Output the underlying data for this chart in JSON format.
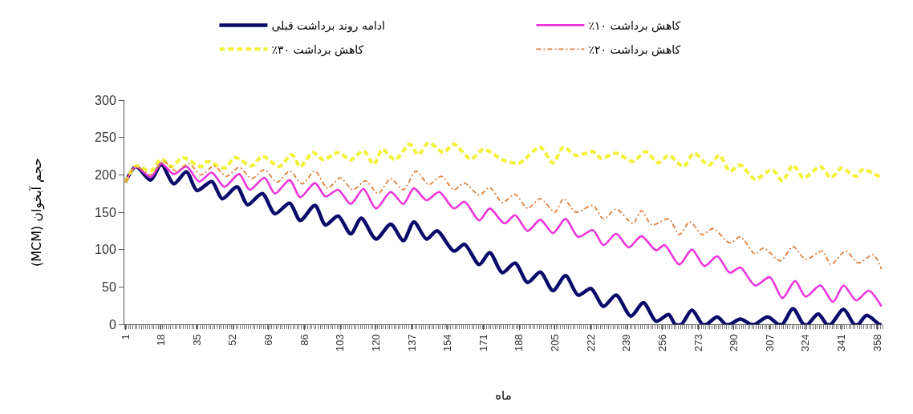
{
  "chart_data": {
    "type": "line",
    "xlabel": "ماه",
    "ylabel": "حجم آبخوان (MCM)",
    "xlim": [
      0.5,
      360.5
    ],
    "xticks": [
      1,
      18,
      35,
      52,
      69,
      86,
      103,
      120,
      137,
      154,
      171,
      188,
      205,
      222,
      239,
      256,
      273,
      290,
      307,
      324,
      341,
      358
    ],
    "ylim": [
      0,
      300
    ],
    "yticks": [
      0,
      50,
      100,
      150,
      200,
      250,
      300
    ],
    "grid": false,
    "legend": "top",
    "series": [
      {
        "name": "ادامه روند برداشت قبلی",
        "color": "#0a0a6b",
        "line_style": "solid",
        "x": [
          1,
          6,
          13,
          18,
          24,
          30,
          35,
          42,
          47,
          54,
          59,
          66,
          72,
          79,
          84,
          91,
          96,
          102,
          108,
          113,
          120,
          127,
          133,
          138,
          144,
          149,
          157,
          162,
          169,
          174,
          180,
          186,
          192,
          198,
          204,
          210,
          216,
          222,
          228,
          234,
          241,
          247,
          253,
          259,
          262,
          265,
          270,
          275,
          277,
          282,
          286,
          288,
          293,
          298,
          300,
          306,
          311,
          313,
          318,
          323,
          325,
          330,
          334,
          336,
          342,
          347,
          349,
          353,
          359,
          360
        ],
        "values": [
          190,
          211,
          193,
          214,
          188,
          204,
          179,
          191,
          168,
          184,
          160,
          175,
          148,
          162,
          139,
          159,
          133,
          145,
          121,
          142,
          114,
          134,
          112,
          137,
          114,
          125,
          98,
          107,
          80,
          96,
          69,
          82,
          56,
          70,
          45,
          65,
          39,
          48,
          24,
          39,
          11,
          29,
          4,
          13,
          0,
          0,
          19,
          0,
          0,
          10,
          0,
          0,
          7,
          0,
          0,
          10,
          0,
          0,
          21,
          0,
          0,
          14,
          0,
          0,
          20,
          0,
          0,
          12,
          0,
          0
        ]
      },
      {
        "name": "کاهش برداشت ۱۰٪",
        "color": "#ee33dd",
        "line_style": "solid",
        "x": [
          1,
          6,
          13,
          18,
          24,
          30,
          36,
          42,
          48,
          55,
          60,
          67,
          72,
          79,
          84,
          91,
          96,
          102,
          108,
          114,
          120,
          127,
          133,
          138,
          144,
          150,
          157,
          162,
          169,
          174,
          181,
          186,
          192,
          198,
          204,
          210,
          216,
          223,
          228,
          234,
          240,
          246,
          253,
          257,
          264,
          270,
          276,
          282,
          288,
          293,
          300,
          307,
          313,
          319,
          324,
          331,
          337,
          342,
          348,
          354,
          360
        ],
        "values": [
          190,
          211,
          197,
          215,
          201,
          211,
          191,
          203,
          184,
          201,
          180,
          196,
          175,
          193,
          170,
          189,
          171,
          180,
          161,
          181,
          155,
          177,
          161,
          182,
          166,
          177,
          155,
          164,
          139,
          155,
          135,
          146,
          125,
          140,
          122,
          141,
          117,
          126,
          106,
          121,
          103,
          118,
          99,
          106,
          80,
          100,
          78,
          91,
          69,
          76,
          52,
          63,
          35,
          58,
          37,
          52,
          30,
          52,
          32,
          45,
          24
        ]
      },
      {
        "name": "کاهش برداشت ۳۰٪",
        "color": "#f2f23a",
        "line_style": "dashed",
        "x": [
          1,
          6,
          13,
          18,
          23,
          28,
          37,
          40,
          48,
          53,
          61,
          66,
          74,
          80,
          84,
          90,
          95,
          102,
          108,
          114,
          119,
          123,
          129,
          136,
          140,
          145,
          152,
          157,
          165,
          171,
          181,
          188,
          198,
          204,
          209,
          215,
          223,
          227,
          234,
          242,
          248,
          254,
          259,
          266,
          271,
          278,
          283,
          288,
          293,
          300,
          308,
          313,
          318,
          323,
          331,
          336,
          341,
          348,
          351,
          360
        ],
        "values": [
          190,
          212,
          205,
          221,
          211,
          223,
          211,
          218,
          209,
          223,
          212,
          225,
          211,
          227,
          211,
          230,
          220,
          230,
          220,
          232,
          214,
          234,
          220,
          241,
          227,
          243,
          230,
          241,
          221,
          234,
          219,
          216,
          237,
          216,
          237,
          226,
          231,
          222,
          229,
          218,
          231,
          216,
          226,
          211,
          229,
          213,
          226,
          205,
          213,
          194,
          207,
          192,
          213,
          196,
          211,
          196,
          209,
          198,
          207,
          196
        ]
      },
      {
        "name": "کاهش برداشت ۲۰٪",
        "color": "#e0803c",
        "line_style": "dashdot",
        "x": [
          1,
          6,
          13,
          19,
          25,
          31,
          37,
          43,
          49,
          55,
          61,
          67,
          73,
          79,
          85,
          91,
          97,
          103,
          109,
          115,
          121,
          127,
          133,
          139,
          145,
          151,
          157,
          162,
          169,
          174,
          180,
          186,
          192,
          198,
          205,
          209,
          215,
          223,
          228,
          234,
          242,
          246,
          251,
          259,
          264,
          269,
          275,
          280,
          288,
          293,
          300,
          304,
          312,
          318,
          324,
          332,
          336,
          343,
          349,
          356,
          360
        ],
        "values": [
          190,
          211,
          200,
          218,
          205,
          215,
          200,
          212,
          198,
          210,
          195,
          207,
          190,
          205,
          188,
          205,
          182,
          196,
          180,
          192,
          175,
          195,
          180,
          205,
          187,
          198,
          180,
          189,
          173,
          183,
          163,
          174,
          155,
          168,
          150,
          168,
          150,
          159,
          141,
          154,
          135,
          152,
          133,
          141,
          120,
          137,
          120,
          128,
          109,
          117,
          94,
          102,
          85,
          104,
          87,
          98,
          80,
          98,
          82,
          93,
          74
        ]
      }
    ]
  }
}
